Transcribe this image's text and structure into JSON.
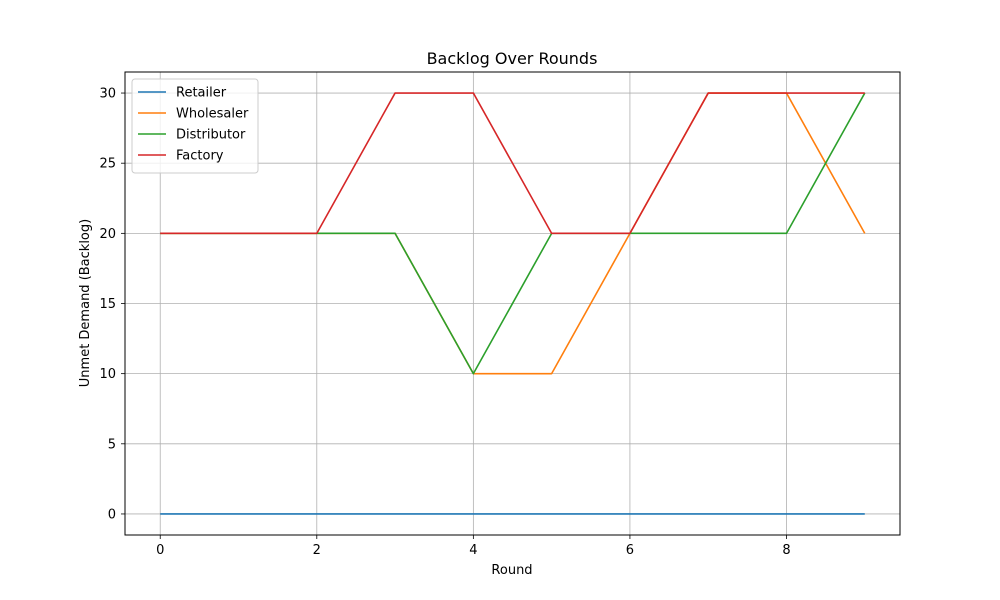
{
  "chart_data": {
    "type": "line",
    "title": "Backlog Over Rounds",
    "xlabel": "Round",
    "ylabel": "Unmet Demand (Backlog)",
    "x": [
      0,
      1,
      2,
      3,
      4,
      5,
      6,
      7,
      8,
      9
    ],
    "xlim": [
      -0.45,
      9.45
    ],
    "ylim": [
      -1.5,
      31.5
    ],
    "xticks": [
      0,
      2,
      4,
      6,
      8
    ],
    "yticks": [
      0,
      5,
      10,
      15,
      20,
      25,
      30
    ],
    "grid": true,
    "legend_position": "top-left",
    "series": [
      {
        "name": "Retailer",
        "color": "#1f77b4",
        "values": [
          0,
          0,
          0,
          0,
          0,
          0,
          0,
          0,
          0,
          0
        ]
      },
      {
        "name": "Wholesaler",
        "color": "#ff7f0e",
        "values": [
          20,
          20,
          20,
          20,
          10,
          10,
          20,
          30,
          30,
          20
        ]
      },
      {
        "name": "Distributor",
        "color": "#2ca02c",
        "values": [
          20,
          20,
          20,
          20,
          10,
          20,
          20,
          20,
          20,
          30
        ]
      },
      {
        "name": "Factory",
        "color": "#d62728",
        "values": [
          20,
          20,
          20,
          30,
          30,
          20,
          20,
          30,
          30,
          30
        ]
      }
    ]
  }
}
